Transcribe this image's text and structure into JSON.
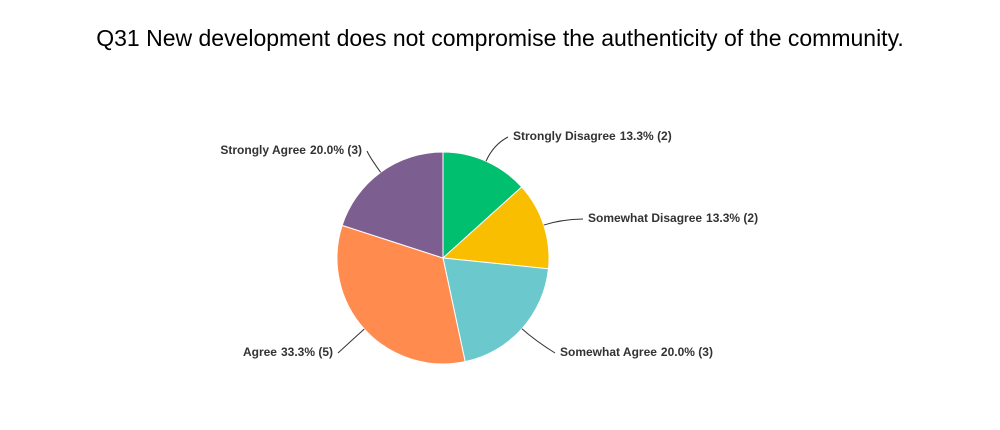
{
  "chart_data": {
    "type": "pie",
    "title": "Q31 New development does not compromise the authenticity of the community.",
    "categories": [
      "Strongly Disagree",
      "Somewhat Disagree",
      "Somewhat Agree",
      "Agree",
      "Strongly Agree"
    ],
    "values": [
      13.3,
      13.3,
      20.0,
      33.3,
      20.0
    ],
    "value_labels": [
      "13.3% (2)",
      "13.3% (2)",
      "20.0% (3)",
      "33.3% (5)",
      "20.0% (3)"
    ],
    "colors": [
      "#00bf6f",
      "#f9be00",
      "#6bc8cd",
      "#ff8b4f",
      "#7d5e90"
    ]
  }
}
